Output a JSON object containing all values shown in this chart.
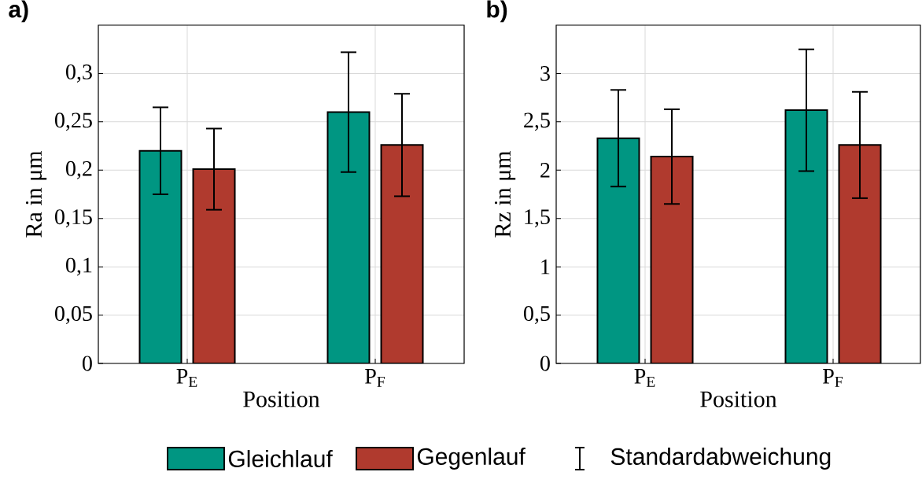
{
  "chart_data": [
    {
      "type": "bar",
      "title": "a)",
      "categories": [
        "P$_{E}$",
        "P$_{F}$"
      ],
      "xlabel": "Position",
      "ylabel": "Ra in μm",
      "series": [
        {
          "name": "Gleichlauf",
          "color": "#009682",
          "values": [
            0.22,
            0.26
          ],
          "errors": [
            0.045,
            0.062
          ]
        },
        {
          "name": "Gegenlauf",
          "color": "#b03a2e",
          "values": [
            0.201,
            0.226
          ],
          "errors": [
            0.042,
            0.053
          ]
        }
      ],
      "ylim": [
        0,
        0.35
      ],
      "yticks": [
        0,
        {
          "value": 0.05,
          "label": "0,05"
        },
        {
          "value": 0.1,
          "label": "0,1"
        },
        {
          "value": 0.15,
          "label": "0,15"
        },
        {
          "value": 0.2,
          "label": "0,2"
        },
        {
          "value": 0.25,
          "label": "0,25"
        },
        {
          "value": 0.3,
          "label": "0,3"
        }
      ],
      "grid": true,
      "legend": "bottom",
      "annotations": [
        "Standardabweichung"
      ]
    },
    {
      "type": "bar",
      "title": "b)",
      "categories": [
        "P$_{E}$",
        "P$_{F}$"
      ],
      "xlabel": "Position",
      "ylabel": "Rz in μm",
      "series": [
        {
          "color": "#009682",
          "values": [
            2.33,
            2.62
          ],
          "errors": [
            0.5,
            0.63
          ]
        },
        {
          "color": "#b03a2e",
          "values": [
            2.14,
            2.26
          ],
          "errors": [
            0.49,
            0.55
          ]
        }
      ],
      "ylim": [
        0,
        3.5
      ],
      "yticks": [
        0,
        {
          "value": 0.5,
          "label": "0,5"
        },
        1,
        {
          "value": 1.5,
          "label": "1,5"
        },
        2,
        {
          "value": 2.5,
          "label": "2,5"
        },
        3
      ],
      "grid": true
    }
  ]
}
